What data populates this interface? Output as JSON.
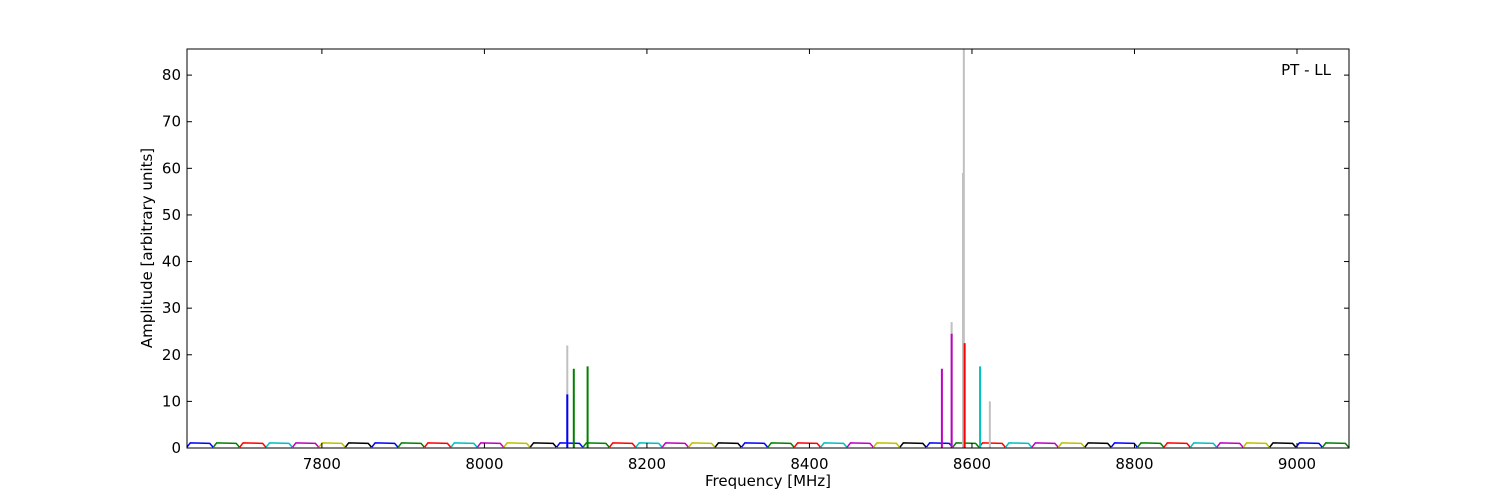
{
  "chart_data": {
    "type": "line",
    "xlabel": "Frequency [MHz]",
    "ylabel": "Amplitude [arbitrary units]",
    "annotation": "PT - LL",
    "xlim": [
      7634,
      9064
    ],
    "ylim": [
      0,
      85.6
    ],
    "xticks": [
      7800,
      8000,
      8200,
      8400,
      8600,
      8800,
      9000
    ],
    "yticks": [
      0,
      10,
      20,
      30,
      40,
      50,
      60,
      70,
      80
    ],
    "series": [
      {
        "color": "#0000ff",
        "x": [
          7634,
          7638,
          7662,
          7666,
          null,
          7861.5,
          7865.5,
          7889.5,
          7893.5,
          null,
          8089,
          8093,
          8117,
          8121,
          null,
          8316.5,
          8320.5,
          8344.5,
          8348.5,
          null,
          8544,
          8548,
          8572,
          8576,
          null,
          8771.5,
          8775.5,
          8799.5,
          8803.5,
          null,
          8999,
          9003,
          9027,
          9031
        ],
        "values": [
          0.2,
          1.1,
          1.0,
          0.2,
          null,
          0.2,
          1.1,
          1.0,
          0.2,
          null,
          0.2,
          1.1,
          1.0,
          0.2,
          null,
          0.2,
          1.1,
          1.0,
          0.2,
          null,
          0.2,
          1.1,
          1.0,
          0.2,
          null,
          0.2,
          1.1,
          1.0,
          0.2,
          null,
          0.2,
          1.1,
          1.0,
          0.2
        ]
      },
      {
        "color": "#008000",
        "x": [
          7666.5,
          7670.5,
          7694.5,
          7698.5,
          null,
          7894,
          7898,
          7922,
          7926,
          null,
          8121.5,
          8125.5,
          8149.5,
          8153.5,
          null,
          8349,
          8353,
          8377,
          8381,
          null,
          8576.5,
          8580.5,
          8604.5,
          8608.5,
          null,
          8804,
          8808,
          8832,
          8836,
          null,
          9031.5,
          9035.5,
          9059.5,
          9063.5
        ],
        "values": [
          0.2,
          1.1,
          1.0,
          0.2,
          null,
          0.2,
          1.1,
          1.0,
          0.2,
          null,
          0.2,
          1.1,
          1.0,
          0.2,
          null,
          0.2,
          1.1,
          1.0,
          0.2,
          null,
          0.2,
          1.1,
          1.0,
          0.2,
          null,
          0.2,
          1.1,
          1.0,
          0.2,
          null,
          0.2,
          1.1,
          1.0,
          0.2
        ]
      },
      {
        "color": "#ff0000",
        "x": [
          7699,
          7703,
          7727,
          7731,
          null,
          7926.5,
          7930.5,
          7954.5,
          7958.5,
          null,
          8154,
          8158,
          8182,
          8186,
          null,
          8381.5,
          8385.5,
          8409.5,
          8413.5,
          null,
          8609,
          8613,
          8637,
          8641,
          null,
          8836.5,
          8840.5,
          8864.5,
          8868.5
        ],
        "values": [
          0.2,
          1.1,
          1.0,
          0.2,
          null,
          0.2,
          1.1,
          1.0,
          0.2,
          null,
          0.2,
          1.1,
          1.0,
          0.2,
          null,
          0.2,
          1.1,
          1.0,
          0.2,
          null,
          0.2,
          1.1,
          1.0,
          0.2,
          null,
          0.2,
          1.1,
          1.0,
          0.2
        ]
      },
      {
        "color": "#00bfbf",
        "x": [
          7731.5,
          7735.5,
          7759.5,
          7763.5,
          null,
          7959,
          7963,
          7987,
          7991,
          null,
          8186.5,
          8190.5,
          8214.5,
          8218.5,
          null,
          8414,
          8418,
          8442,
          8446,
          null,
          8641.5,
          8645.5,
          8669.5,
          8673.5,
          null,
          8869,
          8873,
          8897,
          8901
        ],
        "values": [
          0.2,
          1.1,
          1.0,
          0.2,
          null,
          0.2,
          1.1,
          1.0,
          0.2,
          null,
          0.2,
          1.1,
          1.0,
          0.2,
          null,
          0.2,
          1.1,
          1.0,
          0.2,
          null,
          0.2,
          1.1,
          1.0,
          0.2,
          null,
          0.2,
          1.1,
          1.0,
          0.2
        ]
      },
      {
        "color": "#bf00bf",
        "x": [
          7764,
          7768,
          7792,
          7796,
          null,
          7991.5,
          7995.5,
          8019.5,
          8023.5,
          null,
          8219,
          8223,
          8247,
          8251,
          null,
          8446.5,
          8450.5,
          8474.5,
          8478.5,
          null,
          8674,
          8678,
          8702,
          8706,
          null,
          8901.5,
          8905.5,
          8929.5,
          8933.5
        ],
        "values": [
          0.2,
          1.1,
          1.0,
          0.2,
          null,
          0.2,
          1.1,
          1.0,
          0.2,
          null,
          0.2,
          1.1,
          1.0,
          0.2,
          null,
          0.2,
          1.1,
          1.0,
          0.2,
          null,
          0.2,
          1.1,
          1.0,
          0.2,
          null,
          0.2,
          1.1,
          1.0,
          0.2
        ]
      },
      {
        "color": "#bfbf00",
        "x": [
          7796.5,
          7800.5,
          7824.5,
          7828.5,
          null,
          8024,
          8028,
          8052,
          8056,
          null,
          8251.5,
          8255.5,
          8279.5,
          8283.5,
          null,
          8479,
          8483,
          8507,
          8511,
          null,
          8706.5,
          8710.5,
          8734.5,
          8738.5,
          null,
          8934,
          8938,
          8962,
          8966
        ],
        "values": [
          0.2,
          1.1,
          1.0,
          0.2,
          null,
          0.2,
          1.1,
          1.0,
          0.2,
          null,
          0.2,
          1.1,
          1.0,
          0.2,
          null,
          0.2,
          1.1,
          1.0,
          0.2,
          null,
          0.2,
          1.1,
          1.0,
          0.2,
          null,
          0.2,
          1.1,
          1.0,
          0.2
        ]
      },
      {
        "color": "#000000",
        "x": [
          7829,
          7833,
          7857,
          7861,
          null,
          8056.5,
          8060.5,
          8084.5,
          8088.5,
          null,
          8284,
          8288,
          8312,
          8316,
          null,
          8511.5,
          8515.5,
          8539.5,
          8543.5,
          null,
          8739,
          8743,
          8767,
          8771,
          null,
          8966.5,
          8970.5,
          8994.5,
          8998.5
        ],
        "values": [
          0.2,
          1.1,
          1.0,
          0.2,
          null,
          0.2,
          1.1,
          1.0,
          0.2,
          null,
          0.2,
          1.1,
          1.0,
          0.2,
          null,
          0.2,
          1.1,
          1.0,
          0.2,
          null,
          0.2,
          1.1,
          1.0,
          0.2,
          null,
          0.2,
          1.1,
          1.0,
          0.2
        ]
      }
    ],
    "spikes": {
      "x": [
        8102,
        8575,
        8589,
        8590,
        8622,
        8102,
        8110,
        8127,
        8563,
        8575,
        8591,
        8610
      ],
      "values": [
        22,
        27,
        59,
        85.6,
        10,
        11.5,
        17,
        17.5,
        17,
        24.5,
        22.5,
        17.5
      ],
      "colors": [
        "#c0c0c0",
        "#c0c0c0",
        "#c0c0c0",
        "#c0c0c0",
        "#c0c0c0",
        "#0000ff",
        "#008000",
        "#008000",
        "#bf00bf",
        "#bf00bf",
        "#ff0000",
        "#00bfbf"
      ]
    }
  }
}
